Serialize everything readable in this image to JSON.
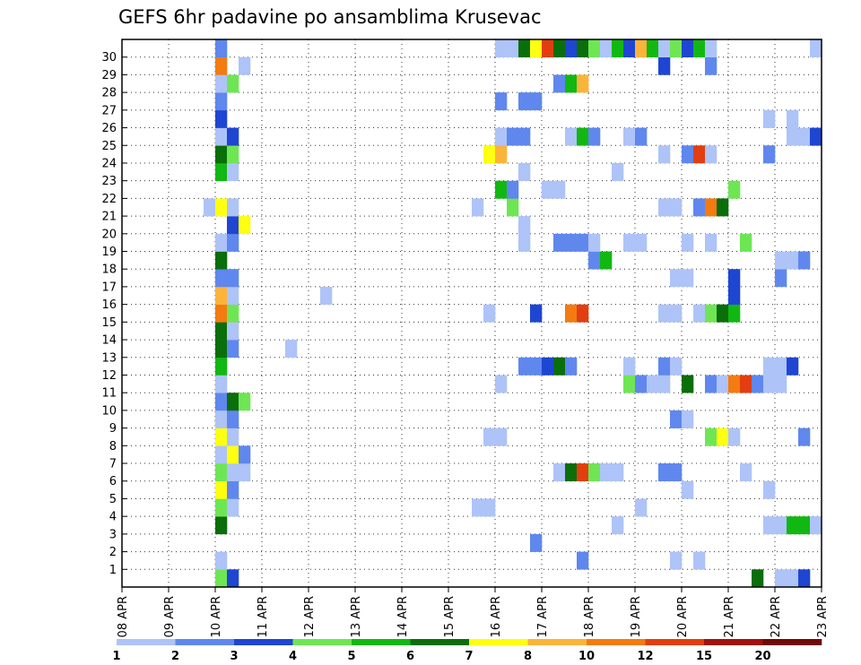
{
  "chart_data": {
    "type": "heatmap",
    "title": "GEFS 6hr padavine po ansamblima Krusevac",
    "xlabel": "",
    "ylabel": "",
    "x_tick_labels": [
      "08 APR",
      "09 APR",
      "10 APR",
      "11 APR",
      "12 APR",
      "13 APR",
      "14 APR",
      "15 APR",
      "16 APR",
      "17 APR",
      "18 APR",
      "19 APR",
      "20 APR",
      "21 APR",
      "22 APR",
      "23 APR"
    ],
    "y_tick_labels": [
      "1",
      "2",
      "3",
      "4",
      "5",
      "6",
      "7",
      "8",
      "9",
      "10",
      "11",
      "12",
      "13",
      "14",
      "15",
      "16",
      "17",
      "18",
      "19",
      "20",
      "21",
      "22",
      "23",
      "24",
      "25",
      "26",
      "27",
      "28",
      "29",
      "30"
    ],
    "steps_per_day": 4,
    "num_steps": 60,
    "members": 31,
    "legend_labels": [
      "1",
      "2",
      "3",
      "4",
      "5",
      "6",
      "7",
      "8",
      "10",
      "12",
      "15",
      "20"
    ],
    "legend_colors": [
      "#aec3f7",
      "#5f87ee",
      "#1e46d2",
      "#6ee654",
      "#11b811",
      "#0a6e0a",
      "#ffff10",
      "#fbb43a",
      "#f47b10",
      "#e23e10",
      "#a21010",
      "#6e0a0a"
    ],
    "cells": [
      [
        0,
        8,
        4
      ],
      [
        0,
        9,
        3
      ],
      [
        0,
        54,
        6
      ],
      [
        0,
        56,
        1
      ],
      [
        0,
        57,
        1
      ],
      [
        0,
        58,
        3
      ],
      [
        1,
        8,
        1
      ],
      [
        1,
        39,
        2
      ],
      [
        1,
        47,
        1
      ],
      [
        1,
        49,
        1
      ],
      [
        2,
        35,
        2
      ],
      [
        3,
        8,
        6
      ],
      [
        3,
        42,
        1
      ],
      [
        3,
        55,
        1
      ],
      [
        3,
        56,
        1
      ],
      [
        3,
        57,
        5
      ],
      [
        3,
        58,
        5
      ],
      [
        3,
        59,
        1
      ],
      [
        4,
        8,
        4
      ],
      [
        4,
        9,
        1
      ],
      [
        4,
        30,
        1
      ],
      [
        4,
        31,
        1
      ],
      [
        4,
        44,
        1
      ],
      [
        5,
        8,
        7
      ],
      [
        5,
        9,
        2
      ],
      [
        5,
        48,
        1
      ],
      [
        5,
        55,
        1
      ],
      [
        6,
        8,
        4
      ],
      [
        6,
        9,
        1
      ],
      [
        6,
        10,
        1
      ],
      [
        6,
        37,
        1
      ],
      [
        6,
        38,
        6
      ],
      [
        6,
        39,
        10
      ],
      [
        6,
        40,
        4
      ],
      [
        6,
        41,
        1
      ],
      [
        6,
        42,
        1
      ],
      [
        6,
        46,
        2
      ],
      [
        6,
        47,
        2
      ],
      [
        6,
        53,
        1
      ],
      [
        7,
        8,
        1
      ],
      [
        7,
        9,
        7
      ],
      [
        7,
        10,
        2
      ],
      [
        8,
        8,
        7
      ],
      [
        8,
        9,
        1
      ],
      [
        8,
        31,
        1
      ],
      [
        8,
        32,
        1
      ],
      [
        8,
        50,
        4
      ],
      [
        8,
        51,
        7
      ],
      [
        8,
        52,
        1
      ],
      [
        8,
        58,
        2
      ],
      [
        9,
        8,
        1
      ],
      [
        9,
        9,
        2
      ],
      [
        9,
        47,
        2
      ],
      [
        9,
        48,
        1
      ],
      [
        10,
        8,
        2
      ],
      [
        10,
        9,
        6
      ],
      [
        10,
        10,
        4
      ],
      [
        11,
        8,
        1
      ],
      [
        11,
        32,
        1
      ],
      [
        11,
        43,
        4
      ],
      [
        11,
        44,
        2
      ],
      [
        11,
        45,
        1
      ],
      [
        11,
        46,
        1
      ],
      [
        11,
        48,
        6
      ],
      [
        11,
        50,
        2
      ],
      [
        11,
        51,
        1
      ],
      [
        11,
        52,
        9
      ],
      [
        11,
        53,
        10
      ],
      [
        11,
        54,
        2
      ],
      [
        11,
        55,
        1
      ],
      [
        11,
        56,
        1
      ],
      [
        12,
        8,
        5
      ],
      [
        12,
        34,
        2
      ],
      [
        12,
        35,
        2
      ],
      [
        12,
        36,
        3
      ],
      [
        12,
        37,
        6
      ],
      [
        12,
        38,
        2
      ],
      [
        12,
        43,
        1
      ],
      [
        12,
        46,
        2
      ],
      [
        12,
        47,
        1
      ],
      [
        12,
        55,
        1
      ],
      [
        12,
        56,
        1
      ],
      [
        12,
        57,
        3
      ],
      [
        13,
        8,
        6
      ],
      [
        13,
        9,
        2
      ],
      [
        13,
        14,
        1
      ],
      [
        14,
        8,
        6
      ],
      [
        14,
        9,
        1
      ],
      [
        15,
        8,
        9
      ],
      [
        15,
        9,
        4
      ],
      [
        15,
        31,
        1
      ],
      [
        15,
        35,
        3
      ],
      [
        15,
        38,
        9
      ],
      [
        15,
        39,
        10
      ],
      [
        15,
        46,
        1
      ],
      [
        15,
        47,
        1
      ],
      [
        15,
        49,
        1
      ],
      [
        15,
        50,
        4
      ],
      [
        15,
        51,
        6
      ],
      [
        15,
        52,
        5
      ],
      [
        16,
        8,
        8
      ],
      [
        16,
        9,
        1
      ],
      [
        16,
        17,
        1
      ],
      [
        16,
        52,
        3
      ],
      [
        17,
        8,
        2
      ],
      [
        17,
        9,
        2
      ],
      [
        17,
        47,
        1
      ],
      [
        17,
        48,
        1
      ],
      [
        17,
        52,
        3
      ],
      [
        17,
        56,
        2
      ],
      [
        18,
        8,
        6
      ],
      [
        18,
        40,
        2
      ],
      [
        18,
        41,
        5
      ],
      [
        18,
        56,
        1
      ],
      [
        18,
        57,
        1
      ],
      [
        18,
        58,
        2
      ],
      [
        19,
        8,
        1
      ],
      [
        19,
        9,
        2
      ],
      [
        19,
        34,
        1
      ],
      [
        19,
        37,
        2
      ],
      [
        19,
        38,
        2
      ],
      [
        19,
        39,
        2
      ],
      [
        19,
        40,
        1
      ],
      [
        19,
        43,
        1
      ],
      [
        19,
        44,
        1
      ],
      [
        19,
        48,
        1
      ],
      [
        19,
        50,
        1
      ],
      [
        19,
        53,
        4
      ],
      [
        20,
        9,
        3
      ],
      [
        20,
        10,
        7
      ],
      [
        20,
        34,
        1
      ],
      [
        21,
        7,
        1
      ],
      [
        21,
        8,
        7
      ],
      [
        21,
        9,
        1
      ],
      [
        21,
        30,
        1
      ],
      [
        21,
        33,
        4
      ],
      [
        21,
        46,
        1
      ],
      [
        21,
        47,
        1
      ],
      [
        21,
        49,
        2
      ],
      [
        21,
        50,
        9
      ],
      [
        21,
        51,
        6
      ],
      [
        22,
        32,
        5
      ],
      [
        22,
        33,
        2
      ],
      [
        22,
        36,
        1
      ],
      [
        22,
        37,
        1
      ],
      [
        22,
        52,
        4
      ],
      [
        23,
        8,
        5
      ],
      [
        23,
        9,
        1
      ],
      [
        23,
        34,
        1
      ],
      [
        23,
        42,
        1
      ],
      [
        24,
        8,
        6
      ],
      [
        24,
        9,
        4
      ],
      [
        24,
        31,
        7
      ],
      [
        24,
        32,
        8
      ],
      [
        24,
        46,
        1
      ],
      [
        24,
        48,
        2
      ],
      [
        24,
        49,
        10
      ],
      [
        24,
        50,
        1
      ],
      [
        24,
        55,
        2
      ],
      [
        25,
        8,
        1
      ],
      [
        25,
        9,
        3
      ],
      [
        25,
        32,
        1
      ],
      [
        25,
        33,
        2
      ],
      [
        25,
        34,
        2
      ],
      [
        25,
        38,
        1
      ],
      [
        25,
        39,
        5
      ],
      [
        25,
        40,
        2
      ],
      [
        25,
        43,
        1
      ],
      [
        25,
        44,
        2
      ],
      [
        25,
        57,
        1
      ],
      [
        25,
        58,
        1
      ],
      [
        25,
        59,
        3
      ],
      [
        26,
        8,
        3
      ],
      [
        26,
        55,
        1
      ],
      [
        26,
        57,
        1
      ],
      [
        27,
        8,
        2
      ],
      [
        27,
        32,
        2
      ],
      [
        27,
        34,
        2
      ],
      [
        27,
        35,
        2
      ],
      [
        28,
        8,
        1
      ],
      [
        28,
        9,
        4
      ],
      [
        28,
        37,
        2
      ],
      [
        28,
        38,
        5
      ],
      [
        28,
        39,
        8
      ],
      [
        29,
        8,
        9
      ],
      [
        29,
        10,
        1
      ],
      [
        29,
        46,
        3
      ],
      [
        29,
        50,
        2
      ],
      [
        30,
        8,
        2
      ],
      [
        30,
        32,
        1
      ],
      [
        30,
        33,
        1
      ],
      [
        30,
        34,
        6
      ],
      [
        30,
        35,
        7
      ],
      [
        30,
        36,
        10
      ],
      [
        30,
        37,
        6
      ],
      [
        30,
        38,
        3
      ],
      [
        30,
        39,
        6
      ],
      [
        30,
        40,
        4
      ],
      [
        30,
        41,
        1
      ],
      [
        30,
        42,
        5
      ],
      [
        30,
        43,
        3
      ],
      [
        30,
        44,
        8
      ],
      [
        30,
        45,
        5
      ],
      [
        30,
        46,
        1
      ],
      [
        30,
        47,
        4
      ],
      [
        30,
        48,
        3
      ],
      [
        30,
        49,
        5
      ],
      [
        30,
        50,
        1
      ],
      [
        30,
        59,
        1
      ]
    ]
  }
}
